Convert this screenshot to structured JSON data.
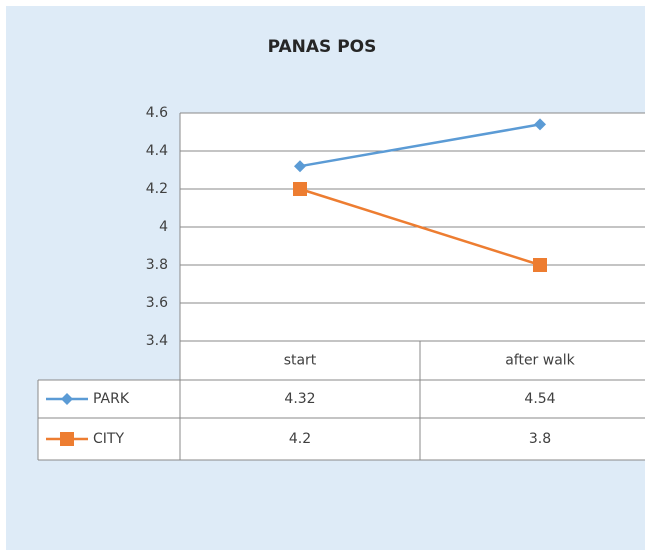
{
  "chart_data": {
    "type": "line",
    "title": "PANAS POS",
    "categories": [
      "start",
      "after walk"
    ],
    "series": [
      {
        "name": "PARK",
        "color": "#5b9bd5",
        "marker": "diamond",
        "values": [
          4.32,
          4.54
        ]
      },
      {
        "name": "CITY",
        "color": "#ed7d31",
        "marker": "square",
        "values": [
          4.2,
          3.8
        ]
      }
    ],
    "ylim": [
      3.4,
      4.6
    ],
    "yticks": [
      3.4,
      3.6,
      3.8,
      4,
      4.2,
      4.4,
      4.6
    ],
    "grid": true,
    "data_table": true
  }
}
